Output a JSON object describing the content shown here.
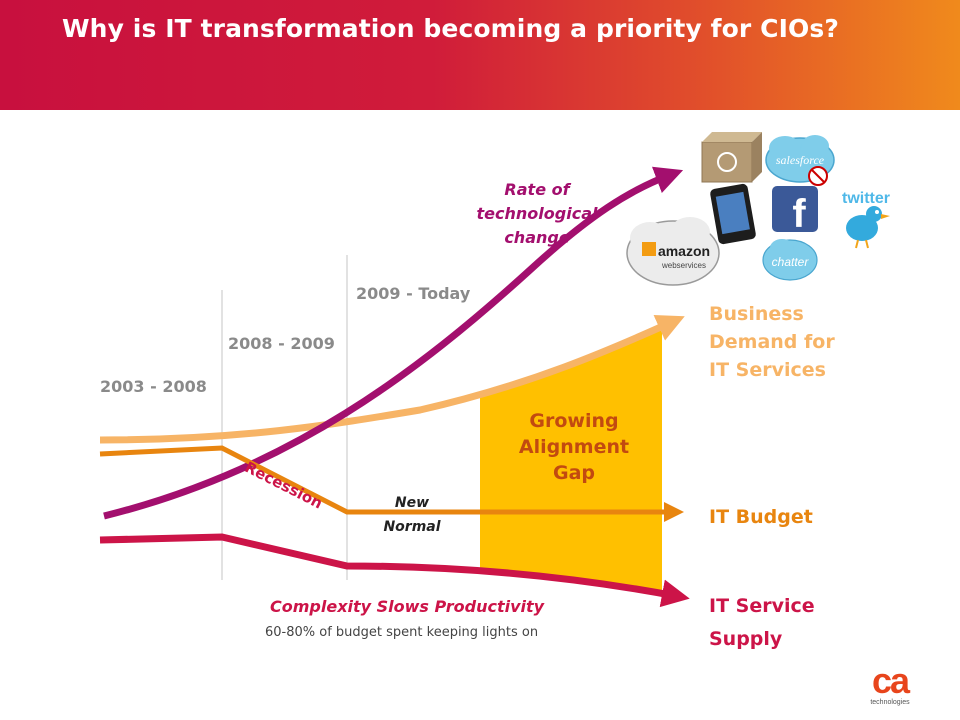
{
  "title": "Why is IT transformation becoming a priority for CIOs?",
  "periods": [
    "2003 - 2008",
    "2008 - 2009",
    "2009 - Today"
  ],
  "annotations": {
    "rate_of_change": [
      "Rate of",
      "technological",
      "change"
    ],
    "recession": "Recession",
    "new_normal": [
      "New",
      "Normal"
    ],
    "gap": [
      "Growing",
      "Alignment",
      "Gap"
    ],
    "complexity": "Complexity Slows Productivity",
    "budget_note": "60-80% of budget spent keeping lights on"
  },
  "lines": {
    "business_demand": [
      "Business",
      "Demand for",
      "IT Services"
    ],
    "it_budget": "IT Budget",
    "it_supply": [
      "IT Service",
      "Supply"
    ]
  },
  "logos": {
    "salesforce": "salesforce",
    "facebook": "f",
    "twitter": "twitter",
    "amazon": "amazon",
    "aws": "webservices",
    "chatter": "chatter",
    "ca": "ca",
    "ca_sub": "technologies"
  },
  "colors": {
    "tech_change": "#a30f6e",
    "business_demand": "#f7b466",
    "it_budget": "#e8850f",
    "it_supply": "#cc1448",
    "gap_fill": "#ffc000",
    "header_start": "#c8103e",
    "header_end": "#f08a1c"
  }
}
